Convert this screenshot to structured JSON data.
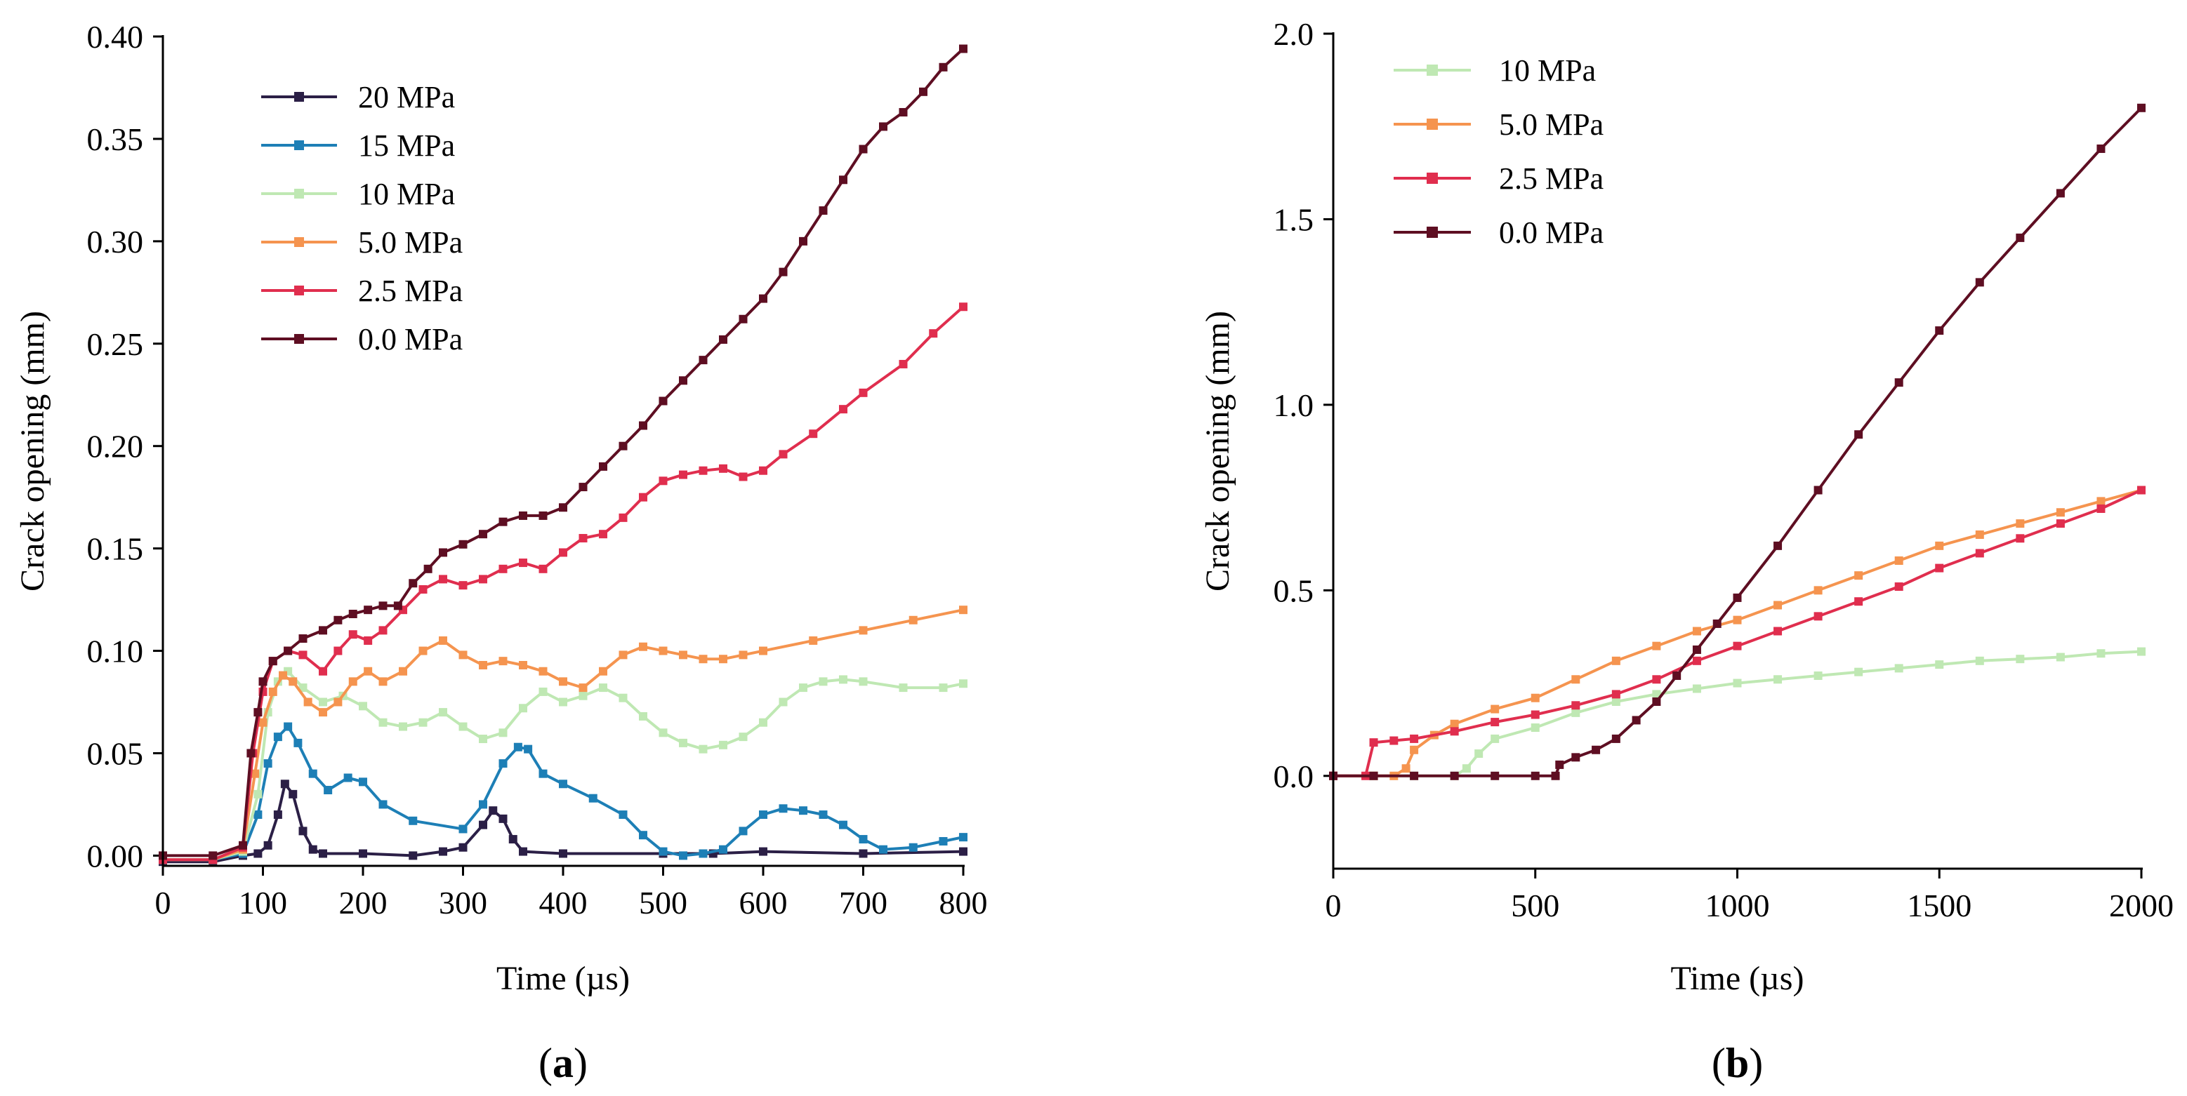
{
  "chart_data": [
    {
      "type": "line",
      "panel": "a",
      "panel_label": "a",
      "title": "",
      "xlabel": "Time (µs)",
      "ylabel": "Crack opening (mm)",
      "xlim": [
        0,
        800
      ],
      "ylim": [
        -0.005,
        0.4
      ],
      "xticks": [
        0,
        100,
        200,
        300,
        400,
        500,
        600,
        700,
        800
      ],
      "xtick_labels": [
        "0",
        "100",
        "200",
        "300",
        "400",
        "500",
        "600",
        "700",
        "800"
      ],
      "yticks": [
        0,
        0.05,
        0.1,
        0.15,
        0.2,
        0.25,
        0.3,
        0.35,
        0.4
      ],
      "ytick_labels": [
        "0.00",
        "0.05",
        "0.10",
        "0.15",
        "0.20",
        "0.25",
        "0.30",
        "0.35",
        "0.40"
      ],
      "legend_position": "top-left",
      "series": [
        {
          "name": "20 MPa",
          "color": "#2b1f46",
          "x": [
            0,
            50,
            80,
            95,
            105,
            115,
            122,
            130,
            140,
            150,
            160,
            200,
            250,
            280,
            300,
            320,
            330,
            340,
            350,
            360,
            400,
            500,
            550,
            600,
            700,
            800
          ],
          "y": [
            -0.003,
            -0.003,
            0,
            0.001,
            0.005,
            0.02,
            0.035,
            0.03,
            0.012,
            0.003,
            0.001,
            0.001,
            0,
            0.002,
            0.004,
            0.015,
            0.022,
            0.018,
            0.008,
            0.002,
            0.001,
            0.001,
            0.001,
            0.002,
            0.001,
            0.002
          ]
        },
        {
          "name": "15 MPa",
          "color": "#1d7fb6",
          "x": [
            0,
            50,
            80,
            95,
            105,
            115,
            125,
            135,
            150,
            165,
            185,
            200,
            220,
            250,
            300,
            320,
            340,
            355,
            365,
            380,
            400,
            430,
            460,
            480,
            500,
            520,
            540,
            560,
            580,
            600,
            620,
            640,
            660,
            680,
            700,
            720,
            750,
            780,
            800
          ],
          "y": [
            -0.002,
            -0.002,
            0.001,
            0.02,
            0.045,
            0.058,
            0.063,
            0.055,
            0.04,
            0.032,
            0.038,
            0.036,
            0.025,
            0.017,
            0.013,
            0.025,
            0.045,
            0.053,
            0.052,
            0.04,
            0.035,
            0.028,
            0.02,
            0.01,
            0.002,
            0,
            0.001,
            0.003,
            0.012,
            0.02,
            0.023,
            0.022,
            0.02,
            0.015,
            0.008,
            0.003,
            0.004,
            0.007,
            0.009
          ]
        },
        {
          "name": "10 MPa",
          "color": "#bfe8b3",
          "x": [
            0,
            50,
            80,
            95,
            105,
            115,
            125,
            140,
            160,
            180,
            200,
            220,
            240,
            260,
            280,
            300,
            320,
            340,
            360,
            380,
            400,
            420,
            440,
            460,
            480,
            500,
            520,
            540,
            560,
            580,
            600,
            620,
            640,
            660,
            680,
            700,
            740,
            780,
            800
          ],
          "y": [
            -0.002,
            -0.002,
            0.002,
            0.03,
            0.07,
            0.085,
            0.09,
            0.082,
            0.075,
            0.078,
            0.073,
            0.065,
            0.063,
            0.065,
            0.07,
            0.063,
            0.057,
            0.06,
            0.072,
            0.08,
            0.075,
            0.078,
            0.082,
            0.077,
            0.068,
            0.06,
            0.055,
            0.052,
            0.054,
            0.058,
            0.065,
            0.075,
            0.082,
            0.085,
            0.086,
            0.085,
            0.082,
            0.082,
            0.084
          ]
        },
        {
          "name": "5.0 MPa",
          "color": "#f5944f",
          "x": [
            0,
            50,
            80,
            92,
            100,
            110,
            120,
            130,
            145,
            160,
            175,
            190,
            205,
            220,
            240,
            260,
            280,
            300,
            320,
            340,
            360,
            380,
            400,
            420,
            440,
            460,
            480,
            500,
            520,
            540,
            560,
            580,
            600,
            650,
            700,
            750,
            800
          ],
          "y": [
            -0.002,
            -0.002,
            0.003,
            0.04,
            0.065,
            0.08,
            0.088,
            0.085,
            0.075,
            0.07,
            0.075,
            0.085,
            0.09,
            0.085,
            0.09,
            0.1,
            0.105,
            0.098,
            0.093,
            0.095,
            0.093,
            0.09,
            0.085,
            0.082,
            0.09,
            0.098,
            0.102,
            0.1,
            0.098,
            0.096,
            0.096,
            0.098,
            0.1,
            0.105,
            0.11,
            0.115,
            0.12
          ]
        },
        {
          "name": "2.5 MPa",
          "color": "#e02e4e",
          "x": [
            0,
            50,
            80,
            90,
            100,
            110,
            125,
            140,
            160,
            175,
            190,
            205,
            220,
            240,
            260,
            280,
            300,
            320,
            340,
            360,
            380,
            400,
            420,
            440,
            460,
            480,
            500,
            520,
            540,
            560,
            580,
            600,
            620,
            650,
            680,
            700,
            740,
            770,
            800
          ],
          "y": [
            -0.002,
            -0.002,
            0.004,
            0.05,
            0.08,
            0.095,
            0.1,
            0.098,
            0.09,
            0.1,
            0.108,
            0.105,
            0.11,
            0.12,
            0.13,
            0.135,
            0.132,
            0.135,
            0.14,
            0.143,
            0.14,
            0.148,
            0.155,
            0.157,
            0.165,
            0.175,
            0.183,
            0.186,
            0.188,
            0.189,
            0.185,
            0.188,
            0.196,
            0.206,
            0.218,
            0.226,
            0.24,
            0.255,
            0.268
          ]
        },
        {
          "name": "0.0 MPa",
          "color": "#5e0e22",
          "x": [
            0,
            50,
            80,
            88,
            95,
            100,
            110,
            125,
            140,
            160,
            175,
            190,
            205,
            220,
            235,
            250,
            265,
            280,
            300,
            320,
            340,
            360,
            380,
            400,
            420,
            440,
            460,
            480,
            500,
            520,
            540,
            560,
            580,
            600,
            620,
            640,
            660,
            680,
            700,
            720,
            740,
            760,
            780,
            800
          ],
          "y": [
            0,
            0,
            0.005,
            0.05,
            0.07,
            0.085,
            0.095,
            0.1,
            0.106,
            0.11,
            0.115,
            0.118,
            0.12,
            0.122,
            0.122,
            0.133,
            0.14,
            0.148,
            0.152,
            0.157,
            0.163,
            0.166,
            0.166,
            0.17,
            0.18,
            0.19,
            0.2,
            0.21,
            0.222,
            0.232,
            0.242,
            0.252,
            0.262,
            0.272,
            0.285,
            0.3,
            0.315,
            0.33,
            0.345,
            0.356,
            0.363,
            0.373,
            0.385,
            0.394
          ]
        }
      ]
    },
    {
      "type": "line",
      "panel": "b",
      "panel_label": "b",
      "title": "",
      "xlabel": "Time (µs)",
      "ylabel": "Crack opening (mm)",
      "xlim": [
        0,
        2000
      ],
      "ylim": [
        -0.25,
        2.0
      ],
      "xticks": [
        0,
        500,
        1000,
        1500,
        2000
      ],
      "xtick_labels": [
        "0",
        "500",
        "1000",
        "1500",
        "2000"
      ],
      "yticks": [
        0,
        0.5,
        1.0,
        1.5,
        2.0
      ],
      "ytick_labels": [
        "0.0",
        "0.5",
        "1.0",
        "1.5",
        "2.0"
      ],
      "legend_position": "top-left",
      "series": [
        {
          "name": "10 MPa",
          "color": "#bfe8b3",
          "x": [
            0,
            100,
            200,
            300,
            330,
            360,
            400,
            500,
            600,
            700,
            800,
            900,
            1000,
            1100,
            1200,
            1300,
            1400,
            1500,
            1600,
            1700,
            1800,
            1900,
            2000
          ],
          "y": [
            0,
            0,
            0,
            0,
            0.02,
            0.06,
            0.1,
            0.13,
            0.17,
            0.2,
            0.22,
            0.235,
            0.25,
            0.26,
            0.27,
            0.28,
            0.29,
            0.3,
            0.31,
            0.315,
            0.32,
            0.33,
            0.335
          ]
        },
        {
          "name": "5.0 MPa",
          "color": "#f5944f",
          "x": [
            0,
            100,
            150,
            180,
            200,
            250,
            300,
            400,
            500,
            600,
            700,
            800,
            900,
            1000,
            1100,
            1200,
            1300,
            1400,
            1500,
            1600,
            1700,
            1800,
            1900,
            2000
          ],
          "y": [
            0,
            0,
            0,
            0.02,
            0.07,
            0.11,
            0.14,
            0.18,
            0.21,
            0.26,
            0.31,
            0.35,
            0.39,
            0.42,
            0.46,
            0.5,
            0.54,
            0.58,
            0.62,
            0.65,
            0.68,
            0.71,
            0.74,
            0.77
          ]
        },
        {
          "name": "2.5 MPa",
          "color": "#e02e4e",
          "x": [
            0,
            80,
            100,
            150,
            200,
            300,
            400,
            500,
            600,
            700,
            800,
            900,
            1000,
            1100,
            1200,
            1300,
            1400,
            1500,
            1600,
            1700,
            1800,
            1900,
            2000
          ],
          "y": [
            0,
            0,
            0.09,
            0.095,
            0.1,
            0.12,
            0.145,
            0.165,
            0.19,
            0.22,
            0.26,
            0.31,
            0.35,
            0.39,
            0.43,
            0.47,
            0.51,
            0.56,
            0.6,
            0.64,
            0.68,
            0.72,
            0.77
          ]
        },
        {
          "name": "0.0 MPa",
          "color": "#5e0e22",
          "x": [
            0,
            100,
            200,
            300,
            400,
            500,
            550,
            560,
            600,
            650,
            700,
            750,
            800,
            850,
            900,
            950,
            1000,
            1100,
            1200,
            1300,
            1400,
            1500,
            1600,
            1700,
            1800,
            1900,
            2000
          ],
          "y": [
            0,
            0,
            0,
            0,
            0,
            0,
            0,
            0.03,
            0.05,
            0.07,
            0.1,
            0.15,
            0.2,
            0.27,
            0.34,
            0.41,
            0.48,
            0.62,
            0.77,
            0.92,
            1.06,
            1.2,
            1.33,
            1.45,
            1.57,
            1.69,
            1.8
          ]
        }
      ]
    }
  ]
}
